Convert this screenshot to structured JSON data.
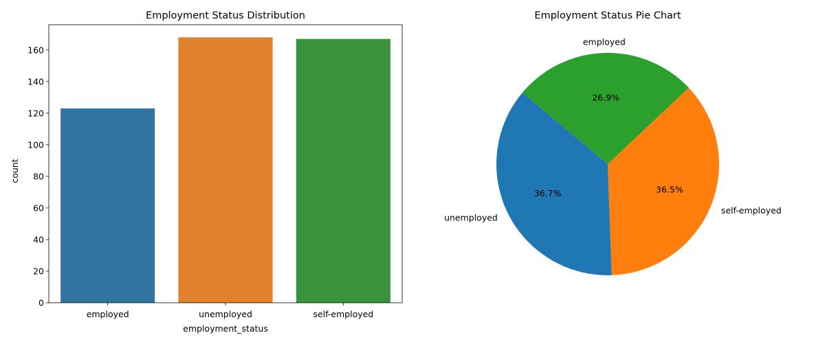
{
  "chart_data": [
    {
      "type": "bar",
      "title": "Employment Status Distribution",
      "xlabel": "employment_status",
      "ylabel": "count",
      "categories": [
        "employed",
        "unemployed",
        "self-employed"
      ],
      "values": [
        123,
        168,
        167
      ],
      "colors": [
        "#3274a1",
        "#e1812c",
        "#3a923a"
      ],
      "ylim": [
        0,
        176
      ],
      "yticks": [
        0,
        20,
        40,
        60,
        80,
        100,
        120,
        140,
        160
      ],
      "grid": false
    },
    {
      "type": "pie",
      "title": "Employment Status Pie Chart",
      "labels": [
        "unemployed",
        "self-employed",
        "employed"
      ],
      "values": [
        168,
        167,
        123
      ],
      "percent_labels": [
        "36.7%",
        "36.5%",
        "26.9%"
      ],
      "colors": [
        "#1f77b4",
        "#ff7f0e",
        "#2ca02c"
      ],
      "start_angle_deg": 140
    }
  ]
}
